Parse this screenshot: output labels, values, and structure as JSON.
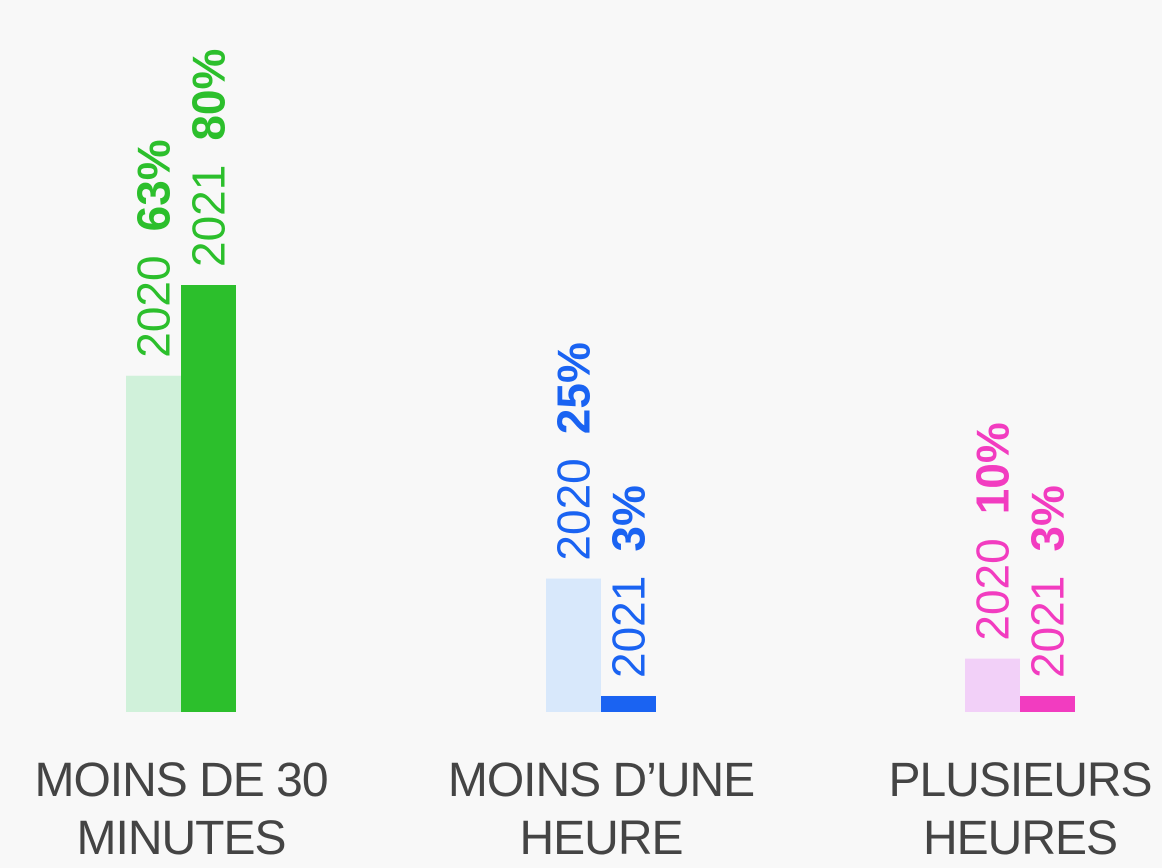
{
  "chart_data": {
    "type": "bar",
    "categories": [
      "MOINS DE 30 MINUTES",
      "MOINS D’UNE HEURE",
      "PLUSIEURS HEURES"
    ],
    "series": [
      {
        "name": "2020",
        "values": [
          63,
          25,
          10
        ],
        "value_labels": [
          "63%",
          "25%",
          "10%"
        ],
        "colors": [
          "#d0f1da",
          "#d8e8fb",
          "#f2d0f8"
        ],
        "label_colors": [
          "#2cbf2c",
          "#1a63f2",
          "#f23cc0"
        ]
      },
      {
        "name": "2021",
        "values": [
          80,
          3,
          3
        ],
        "value_labels": [
          "80%",
          "3%",
          "3%"
        ],
        "colors": [
          "#2cbf2c",
          "#1a63f2",
          "#f23cc0"
        ],
        "label_colors": [
          "#2cbf2c",
          "#1a63f2",
          "#f23cc0"
        ]
      }
    ],
    "ylim": [
      0,
      80
    ]
  }
}
